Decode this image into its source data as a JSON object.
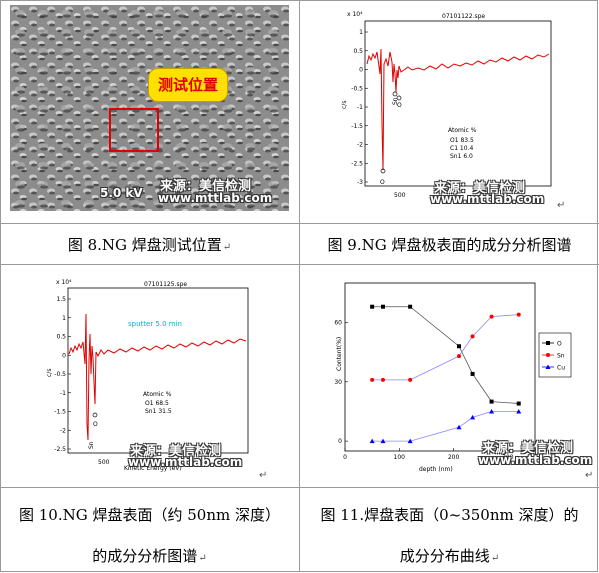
{
  "captions": {
    "fig8": "图 8.NG 焊盘测试位置",
    "fig9": "图 9.NG 焊盘极表面的成分分析图谱",
    "fig10_line1": "图 10.NG 焊盘表面（约 50nm 深度）",
    "fig10_line2": "的成分分析图谱",
    "fig11_line1": "图 11.焊盘表面（0~350nm 深度）的",
    "fig11_line2": "成分分布曲线"
  },
  "watermark": {
    "source": "来源：美信检测",
    "url": "www.mttlab.com"
  },
  "fig8": {
    "callout": "测试位置",
    "sem_scale": "5.0 kV"
  },
  "fig9": {
    "file_title": "07101122.spe",
    "exponent": "x 10⁴",
    "ylabel": "c/s",
    "xtick": "500",
    "peak_labels": [
      "O",
      "Sn",
      "O"
    ],
    "atomic_title": "Atomic %",
    "atomic_rows": [
      "O1   83.5",
      "C1   10.4",
      "Sn1   6.0"
    ],
    "yticks": [
      "1",
      "0.5",
      "0",
      "-0.5",
      "-1",
      "-1.5",
      "-2",
      "-2.5",
      "-3"
    ]
  },
  "fig10": {
    "file_title": "07101125.spe",
    "exponent": "x 10⁴",
    "ylabel": "c/s",
    "sputter": "sputter 5.0 min",
    "xtick": "500",
    "xlabel": "Kinetic Energy (eV)",
    "peak_labels": [
      "Sn",
      "O"
    ],
    "atomic_title": "Atomic %",
    "atomic_rows": [
      "O1   68.5",
      "Sn1   31.5"
    ],
    "yticks": [
      "1.5",
      "1",
      "0.5",
      "0",
      "-0.5",
      "-1",
      "-1.5",
      "-2",
      "-2.5"
    ]
  },
  "chart_data": {
    "type": "line",
    "xlabel": "depth (nm)",
    "ylabel": "Content(%)",
    "xlim": [
      0,
      350
    ],
    "ylim": [
      -5,
      80
    ],
    "x_ticks": [
      0,
      100,
      200,
      300
    ],
    "y_ticks": [
      0,
      30,
      60
    ],
    "legend_position": "right",
    "x": [
      50,
      70,
      120,
      210,
      235,
      270,
      320
    ],
    "series": [
      {
        "name": "O",
        "color": "#000000",
        "marker": "square",
        "values": [
          68,
          68,
          68,
          48,
          34,
          20,
          19
        ]
      },
      {
        "name": "Sn",
        "color": "#ff0000",
        "marker": "circle",
        "values": [
          31,
          31,
          31,
          43,
          53,
          63,
          64
        ]
      },
      {
        "name": "Cu",
        "color": "#0000ff",
        "marker": "triangle",
        "values": [
          0,
          0,
          0,
          7,
          12,
          15,
          15
        ]
      }
    ]
  }
}
